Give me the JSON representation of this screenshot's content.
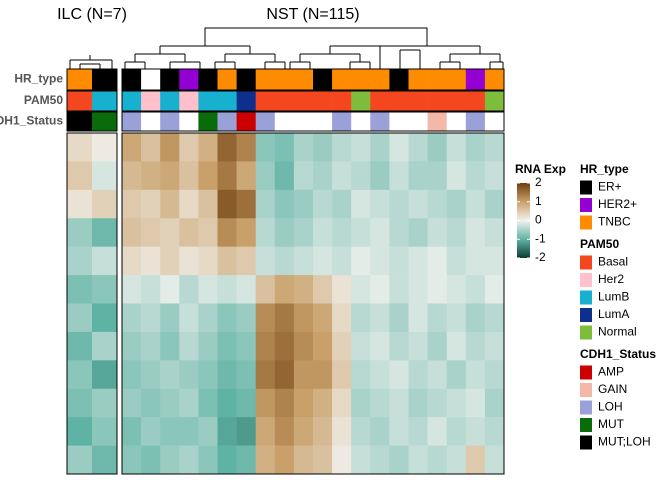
{
  "chart_data": {
    "type": "heatmap",
    "panels": [
      {
        "title": "ILC (N=7)",
        "values": [
          [
            0.3,
            0.1
          ],
          [
            0.5,
            -0.2
          ],
          [
            0.2,
            0.4
          ],
          [
            -0.6,
            -0.9
          ],
          [
            -0.5,
            -0.3
          ],
          [
            -0.8,
            -0.7
          ],
          [
            -0.6,
            -1.0
          ],
          [
            -0.9,
            -0.5
          ],
          [
            -0.7,
            -1.1
          ],
          [
            -0.8,
            -0.6
          ],
          [
            -1.0,
            -0.7
          ],
          [
            -0.6,
            -0.9
          ]
        ]
      },
      {
        "title": "NST (N=115)",
        "values": [
          [
            0.9,
            0.6,
            1.1,
            0.5,
            0.8,
            1.6,
            1.3,
            -0.7,
            -0.8,
            -0.5,
            -0.6,
            -0.4,
            -0.3,
            -0.5,
            -0.2,
            -0.4,
            -0.6,
            -0.3,
            -0.5,
            -0.4
          ],
          [
            0.7,
            0.8,
            0.9,
            0.6,
            1.0,
            1.4,
            0.9,
            -0.6,
            -0.9,
            -0.4,
            -0.5,
            -0.3,
            -0.4,
            -0.6,
            -0.3,
            -0.5,
            -0.5,
            -0.2,
            -0.4,
            -0.3
          ],
          [
            0.5,
            0.4,
            0.7,
            0.3,
            0.6,
            1.7,
            1.5,
            -0.5,
            -0.7,
            -0.6,
            -0.4,
            -0.5,
            -0.2,
            -0.3,
            -0.4,
            -0.3,
            -0.4,
            -0.5,
            -0.3,
            -0.5
          ],
          [
            0.6,
            0.5,
            0.4,
            0.6,
            0.5,
            1.2,
            1.0,
            -0.4,
            -0.6,
            -0.5,
            -0.3,
            -0.4,
            -0.3,
            -0.2,
            -0.4,
            -0.5,
            -0.3,
            -0.4,
            -0.2,
            -0.3
          ],
          [
            0.3,
            0.2,
            0.4,
            0.2,
            0.3,
            0.6,
            0.5,
            -0.3,
            -0.4,
            -0.3,
            -0.2,
            -0.3,
            -0.1,
            -0.2,
            -0.3,
            -0.2,
            -0.1,
            -0.3,
            -0.2,
            -0.2
          ],
          [
            -0.2,
            -0.3,
            -0.1,
            -0.4,
            -0.2,
            -0.3,
            -0.2,
            0.6,
            0.9,
            0.8,
            0.5,
            0.2,
            -0.2,
            -0.1,
            -0.3,
            -0.2,
            -0.1,
            -0.2,
            -0.3,
            -0.1
          ],
          [
            -0.5,
            -0.4,
            -0.6,
            -0.3,
            -0.5,
            -0.7,
            -0.6,
            1.2,
            1.4,
            1.1,
            0.9,
            0.3,
            -0.4,
            -0.3,
            -0.5,
            -0.2,
            -0.4,
            -0.3,
            -0.5,
            -0.4
          ],
          [
            -0.6,
            -0.5,
            -0.7,
            -0.4,
            -0.6,
            -0.8,
            -0.7,
            1.3,
            1.5,
            1.2,
            1.0,
            0.4,
            -0.3,
            -0.2,
            -0.4,
            -0.3,
            -0.5,
            -0.2,
            -0.4,
            -0.3
          ],
          [
            -0.7,
            -0.6,
            -0.5,
            -0.6,
            -0.7,
            -0.9,
            -0.8,
            1.4,
            1.6,
            1.1,
            1.1,
            0.5,
            -0.4,
            -0.3,
            -0.2,
            -0.4,
            -0.3,
            -0.5,
            -0.3,
            -0.4
          ],
          [
            -0.6,
            -0.7,
            -0.6,
            -0.5,
            -0.8,
            -1.0,
            -0.9,
            1.1,
            1.3,
            1.0,
            0.8,
            0.3,
            -0.5,
            -0.4,
            -0.3,
            -0.5,
            -0.4,
            -0.3,
            -0.2,
            -0.5
          ],
          [
            -0.8,
            -0.6,
            -0.7,
            -0.7,
            -0.6,
            -1.1,
            -1.2,
            0.9,
            1.2,
            0.9,
            0.7,
            0.2,
            -0.4,
            -0.5,
            -0.3,
            -0.4,
            -0.2,
            -0.4,
            -0.3,
            -0.4
          ],
          [
            -0.7,
            -0.8,
            -0.6,
            -0.5,
            -0.7,
            -1.0,
            -0.9,
            0.8,
            1.0,
            0.7,
            0.6,
            0.1,
            -0.3,
            -0.4,
            -0.5,
            -0.3,
            -0.4,
            -0.3,
            0.5,
            -0.3
          ]
        ]
      }
    ],
    "annotations": [
      {
        "name": "HR_type",
        "categories": [
          {
            "name": "ER+",
            "color": "#000000"
          },
          {
            "name": "HER2+",
            "color": "#9400d3"
          },
          {
            "name": "TNBC",
            "color": "#ff8c00"
          }
        ],
        "panels": [
          [
            "TNBC",
            "ER+"
          ],
          [
            "ER+",
            null,
            "ER+",
            "HER2+",
            "ER+",
            "TNBC",
            "ER+",
            "TNBC",
            "TNBC",
            "TNBC",
            "ER+",
            "TNBC",
            "TNBC",
            "TNBC",
            "ER+",
            "TNBC",
            "TNBC",
            "TNBC",
            "HER2+",
            "TNBC"
          ]
        ]
      },
      {
        "name": "PAM50",
        "categories": [
          {
            "name": "Basal",
            "color": "#f4461f"
          },
          {
            "name": "Her2",
            "color": "#ffc0cb"
          },
          {
            "name": "LumB",
            "color": "#17b0ce"
          },
          {
            "name": "LumA",
            "color": "#0f2f8f"
          },
          {
            "name": "Normal",
            "color": "#7dbd3b"
          }
        ],
        "panels": [
          [
            "Basal",
            "LumB"
          ],
          [
            "LumB",
            "Her2",
            "LumB",
            "Her2",
            "LumB",
            "LumB",
            "LumA",
            "Basal",
            "Basal",
            "Basal",
            "Basal",
            "Basal",
            "Normal",
            "Basal",
            "Basal",
            "Basal",
            "Basal",
            "Basal",
            "Basal",
            "Normal"
          ]
        ]
      },
      {
        "name": "CDH1_Status",
        "categories": [
          {
            "name": "AMP",
            "color": "#cc0000"
          },
          {
            "name": "GAIN",
            "color": "#f4b8a8"
          },
          {
            "name": "LOH",
            "color": "#9aa0d8"
          },
          {
            "name": "MUT",
            "color": "#0a6b0a"
          },
          {
            "name": "MUT;LOH",
            "color": "#000000"
          }
        ],
        "panels": [
          [
            "MUT;LOH",
            "MUT"
          ],
          [
            "LOH",
            null,
            "LOH",
            null,
            "MUT",
            "LOH",
            "AMP",
            "LOH",
            null,
            null,
            null,
            "LOH",
            null,
            "LOH",
            null,
            null,
            "GAIN",
            null,
            "LOH",
            null
          ]
        ]
      }
    ],
    "colorbar": {
      "title": "RNA Exp",
      "lim": [
        -2,
        2
      ],
      "ticks": [
        2,
        1,
        0,
        -1,
        -2
      ],
      "colors": [
        "#6e3e0c",
        "#c9a06a",
        "#f2f2ee",
        "#5fb3a5",
        "#0a3d34"
      ]
    }
  }
}
